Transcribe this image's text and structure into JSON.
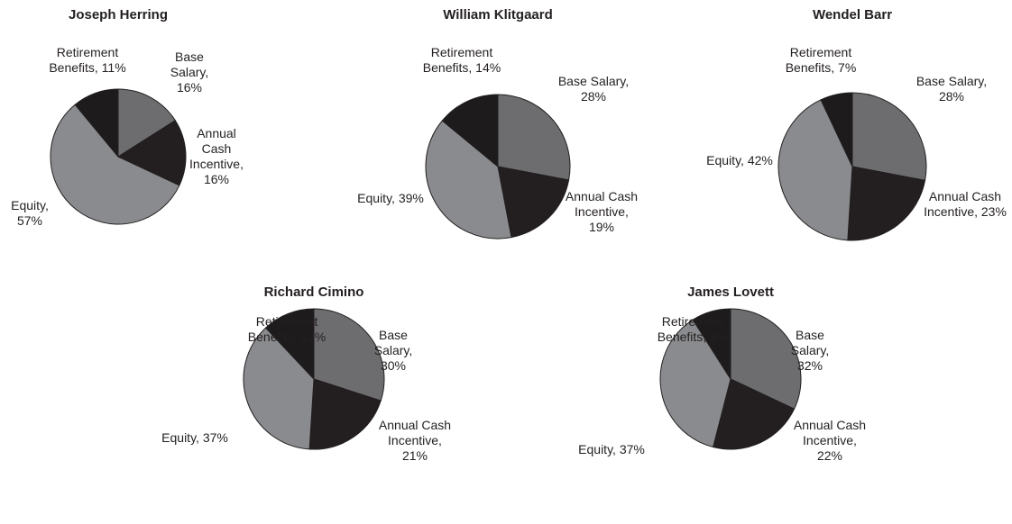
{
  "chart_data": [
    {
      "type": "pie",
      "title": "Joseph Herring",
      "values": [
        16,
        16,
        57,
        11
      ],
      "value_labels": [
        "Base\nSalary,\n16%",
        "Annual\nCash\nIncentive,\n16%",
        "Equity,\n57%",
        "Retirement\nBenefits, 11%"
      ],
      "colors": [
        "#6d6d6f",
        "#231f20",
        "#8a8b8e",
        "#1e1b1c"
      ]
    },
    {
      "type": "pie",
      "title": "William Klitgaard",
      "values": [
        28,
        19,
        39,
        14
      ],
      "value_labels": [
        "Base Salary,\n28%",
        "Annual Cash\nIncentive,\n19%",
        "Equity, 39%",
        "Retirement\nBenefits, 14%"
      ],
      "colors": [
        "#6d6d6f",
        "#231f20",
        "#8a8b8e",
        "#1e1b1c"
      ]
    },
    {
      "type": "pie",
      "title": "Wendel Barr",
      "values": [
        28,
        23,
        42,
        7
      ],
      "value_labels": [
        "Base Salary,\n28%",
        "Annual Cash\nIncentive, 23%",
        "Equity, 42%",
        "Retirement\nBenefits, 7%"
      ],
      "colors": [
        "#6d6d6f",
        "#231f20",
        "#8a8b8e",
        "#1e1b1c"
      ]
    },
    {
      "type": "pie",
      "title": "Richard Cimino",
      "values": [
        30,
        21,
        37,
        12
      ],
      "value_labels": [
        "Base\nSalary,\n30%",
        "Annual Cash\nIncentive,\n21%",
        "Equity, 37%",
        "Retirement\nBenefits, 12%"
      ],
      "colors": [
        "#6d6d6f",
        "#231f20",
        "#8a8b8e",
        "#1e1b1c"
      ]
    },
    {
      "type": "pie",
      "title": "James Lovett",
      "values": [
        32,
        22,
        37,
        9
      ],
      "value_labels": [
        "Base\nSalary,\n32%",
        "Annual Cash\nIncentive,\n22%",
        "Equity, 37%",
        "Retirement\nBenefits, 9%"
      ],
      "colors": [
        "#6d6d6f",
        "#231f20",
        "#8a8b8e",
        "#1e1b1c"
      ]
    }
  ]
}
